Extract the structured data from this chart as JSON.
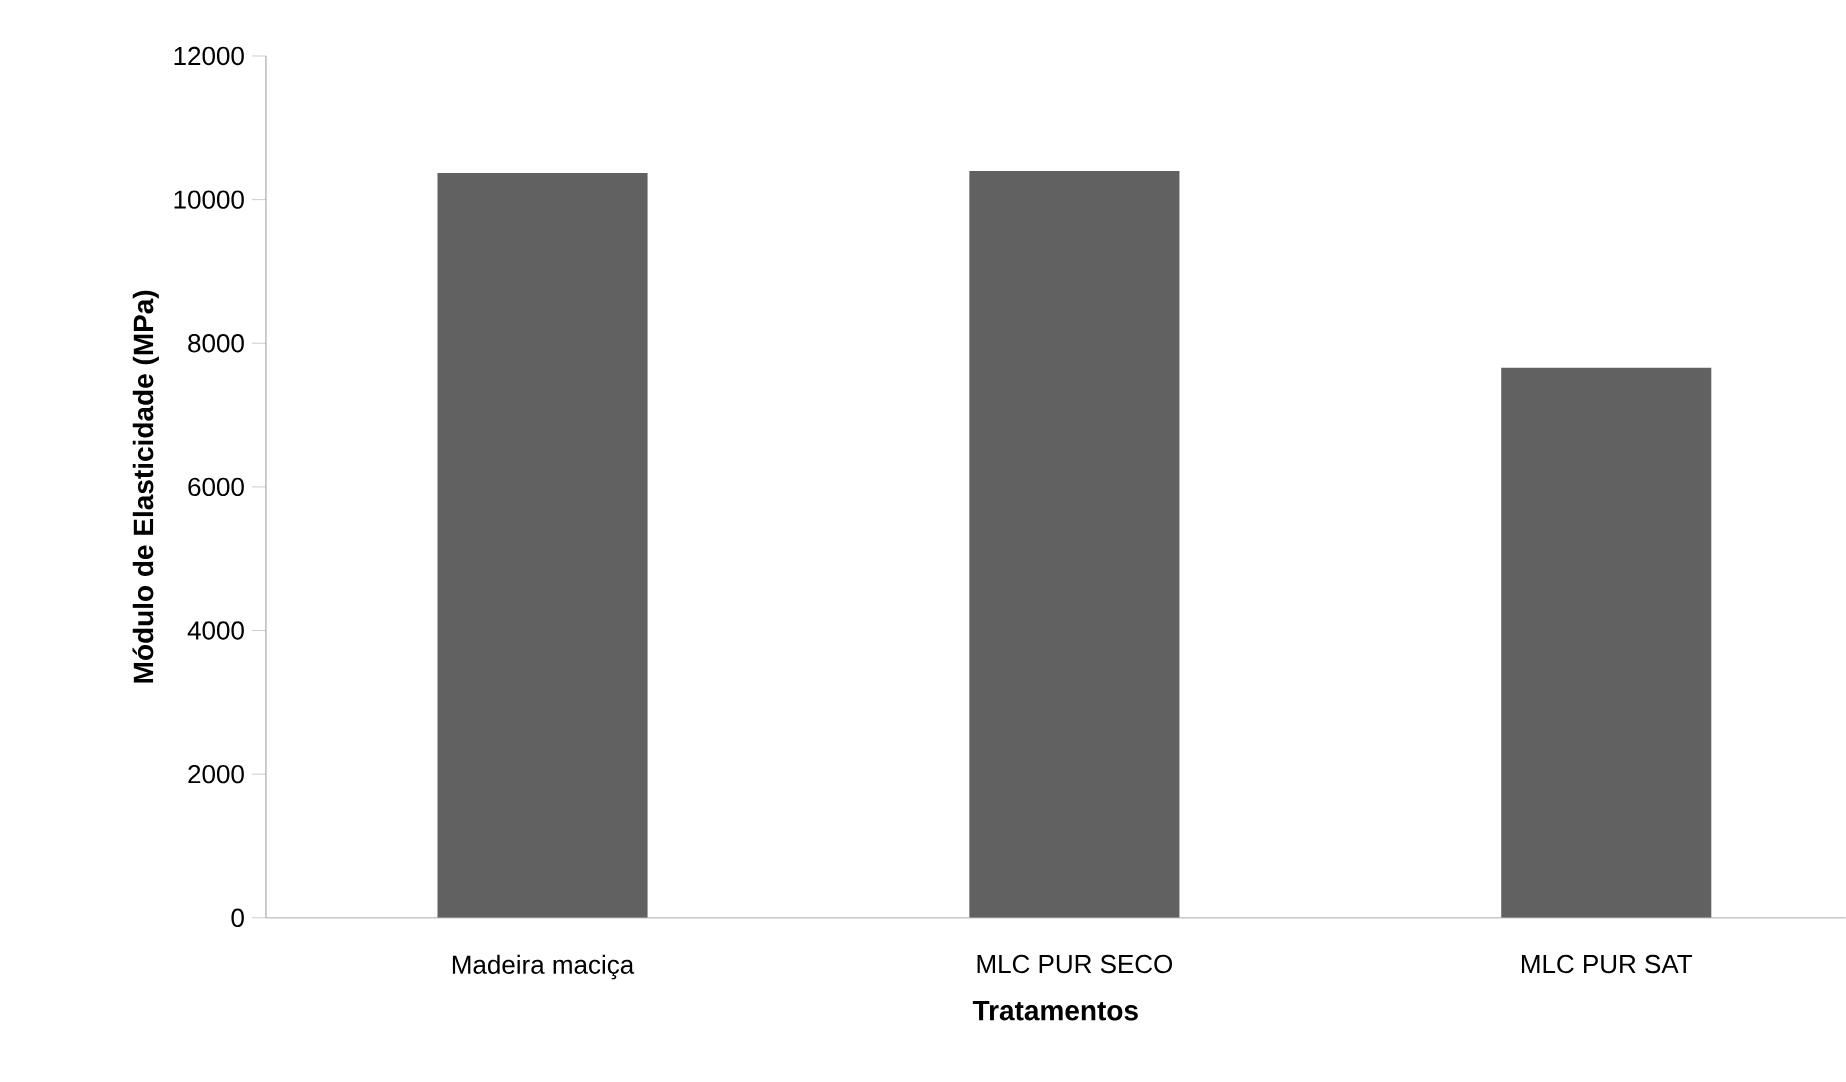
{
  "chart_data": {
    "type": "bar",
    "xlabel": "Tratamentos",
    "ylabel": "Módulo de Elasticidade (MPa)",
    "categories": [
      "Madeira maciça",
      "MLC PUR SECO",
      "MLC PUR SAT"
    ],
    "values": [
      10370,
      10400,
      7660
    ],
    "color": "#616161",
    "ylim": [
      0,
      12000
    ],
    "yticks": [
      0,
      2000,
      4000,
      6000,
      8000,
      10000,
      12000
    ],
    "grid": false
  }
}
